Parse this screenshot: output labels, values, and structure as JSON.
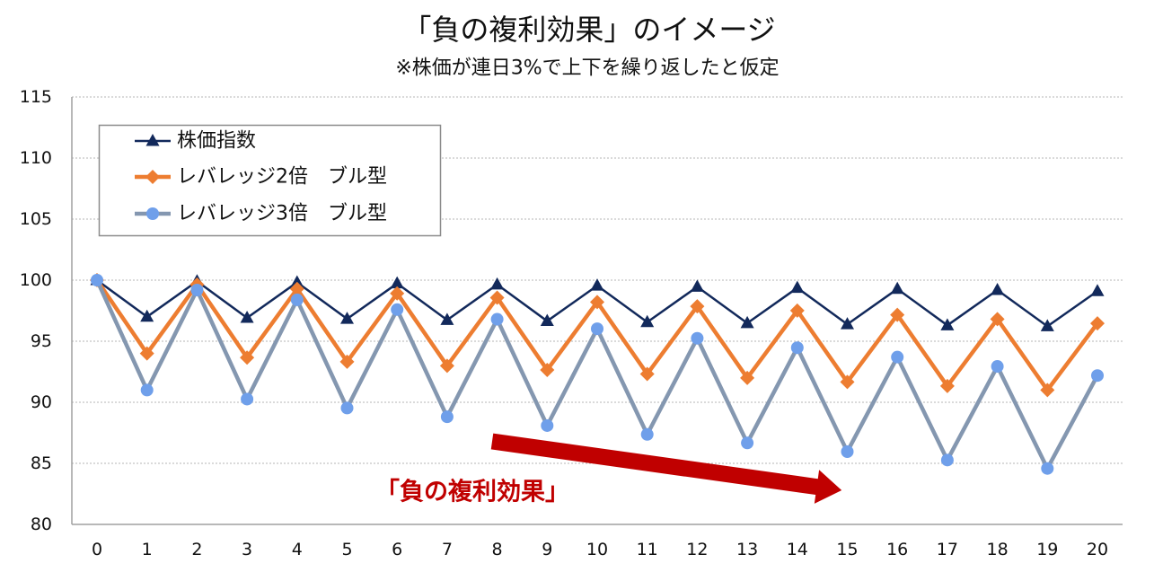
{
  "chart_data": {
    "type": "line",
    "title": "「負の複利効果」のイメージ",
    "subtitle": "※株価が連日3%で上下を繰り返したと仮定",
    "x": [
      0,
      1,
      2,
      3,
      4,
      5,
      6,
      7,
      8,
      9,
      10,
      11,
      12,
      13,
      14,
      15,
      16,
      17,
      18,
      19,
      20
    ],
    "xlim": [
      0,
      20
    ],
    "ylim": [
      80,
      115
    ],
    "yticks": [
      80,
      85,
      90,
      95,
      100,
      105,
      110,
      115
    ],
    "grid": true,
    "legend_position": "top-left",
    "series": [
      {
        "name": "株価指数",
        "color": "#12295b",
        "marker": "triangle",
        "marker_color": "#12295b",
        "values": [
          100,
          97,
          99.91,
          96.91,
          99.82,
          96.83,
          99.73,
          96.74,
          99.64,
          96.65,
          99.55,
          96.56,
          99.46,
          96.48,
          99.37,
          96.39,
          99.28,
          96.3,
          99.19,
          96.22,
          99.1
        ]
      },
      {
        "name": "レバレッジ2倍　ブル型",
        "color": "#ed7d31",
        "marker": "diamond",
        "marker_color": "#ed7d31",
        "values": [
          100,
          94,
          99.64,
          93.66,
          99.28,
          93.32,
          98.92,
          92.99,
          98.57,
          92.65,
          98.21,
          92.32,
          97.86,
          91.99,
          97.51,
          91.66,
          97.16,
          91.33,
          96.81,
          91,
          96.46
        ]
      },
      {
        "name": "レバレッジ3倍　ブル型",
        "color": "#8497b0",
        "marker": "circle",
        "marker_color": "#6f9fea",
        "values": [
          100,
          91,
          99.19,
          90.26,
          98.39,
          89.53,
          97.59,
          88.81,
          96.8,
          88.09,
          96.02,
          87.37,
          95.24,
          86.67,
          94.47,
          85.96,
          93.7,
          85.27,
          92.94,
          84.58,
          92.19
        ]
      }
    ],
    "annotations": [
      {
        "text": "「負の複利効果」",
        "color": "#c00000"
      }
    ]
  }
}
